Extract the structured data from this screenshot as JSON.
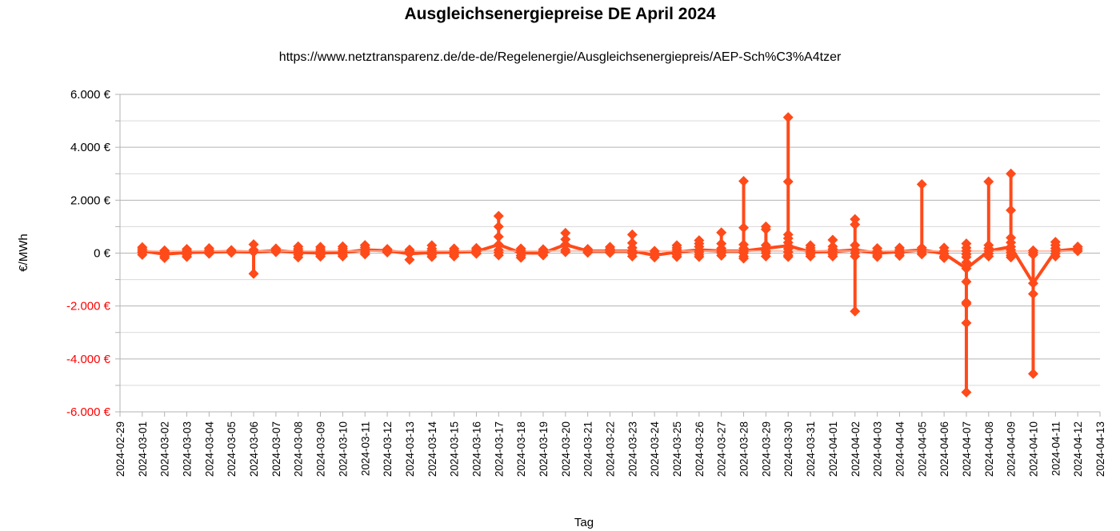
{
  "chart_data": {
    "type": "line",
    "title": "Ausgleichsenergiepreise DE April 2024",
    "subtitle": "https://www.netztransparenz.de/de-de/Regelenergie/Ausgleichsenergiepreis/AEP-Sch%C3%A4tzer",
    "xlabel": "Tag",
    "ylabel": "€/MWh",
    "ylim": [
      -6000,
      6000
    ],
    "grid": true,
    "legend": "none",
    "colors": {
      "series": "#ff4a1a",
      "grid": "#b3b3b3",
      "negative_tick": "#ff0000",
      "positive_tick": "#000000"
    },
    "y_ticks": [
      {
        "value": 6000,
        "label": "6.000 €"
      },
      {
        "value": 4000,
        "label": "4.000 €"
      },
      {
        "value": 2000,
        "label": "2.000 €"
      },
      {
        "value": 0,
        "label": "0 €"
      },
      {
        "value": -2000,
        "label": "-2.000 €"
      },
      {
        "value": -4000,
        "label": "-4.000 €"
      },
      {
        "value": -6000,
        "label": "-6.000 €"
      }
    ],
    "x_ticks": [
      "2024-02-29",
      "2024-03-01",
      "2024-03-02",
      "2024-03-03",
      "2024-03-04",
      "2024-03-05",
      "2024-03-06",
      "2024-03-07",
      "2024-03-08",
      "2024-03-09",
      "2024-03-10",
      "2024-03-11",
      "2024-03-12",
      "2024-03-13",
      "2024-03-14",
      "2024-03-15",
      "2024-03-16",
      "2024-03-17",
      "2024-03-18",
      "2024-03-19",
      "2024-03-20",
      "2024-03-21",
      "2024-03-22",
      "2024-03-23",
      "2024-03-24",
      "2024-03-25",
      "2024-03-26",
      "2024-03-27",
      "2024-03-28",
      "2024-03-29",
      "2024-03-30",
      "2024-03-31",
      "2024-04-01",
      "2024-04-02",
      "2024-04-03",
      "2024-04-04",
      "2024-04-05",
      "2024-04-06",
      "2024-04-07",
      "2024-04-08",
      "2024-04-09",
      "2024-04-10",
      "2024-04-11",
      "2024-04-12",
      "2024-04-13"
    ],
    "x": [
      "2024-03-01",
      "2024-03-02",
      "2024-03-03",
      "2024-03-04",
      "2024-03-05",
      "2024-03-06",
      "2024-03-07",
      "2024-03-08",
      "2024-03-09",
      "2024-03-10",
      "2024-03-11",
      "2024-03-12",
      "2024-03-13",
      "2024-03-14",
      "2024-03-15",
      "2024-03-16",
      "2024-03-17",
      "2024-03-18",
      "2024-03-19",
      "2024-03-20",
      "2024-03-21",
      "2024-03-22",
      "2024-03-23",
      "2024-03-24",
      "2024-03-25",
      "2024-03-26",
      "2024-03-27",
      "2024-03-28",
      "2024-03-29",
      "2024-03-30",
      "2024-03-31",
      "2024-04-01",
      "2024-04-02",
      "2024-04-03",
      "2024-04-04",
      "2024-04-05",
      "2024-04-06",
      "2024-04-07",
      "2024-04-08",
      "2024-04-09",
      "2024-04-10",
      "2024-04-11",
      "2024-04-12"
    ],
    "series": [
      {
        "values": [
          [
            220,
            150,
            80,
            20,
            -60
          ],
          [
            100,
            40,
            -40,
            -120,
            -180
          ],
          [
            150,
            80,
            20,
            -60,
            -140
          ],
          [
            180,
            110,
            40,
            -20
          ],
          [
            110,
            60,
            20
          ],
          [
            330,
            120,
            40,
            -780
          ],
          [
            170,
            100,
            40
          ],
          [
            250,
            160,
            90,
            20,
            -60,
            -160
          ],
          [
            230,
            150,
            80,
            10,
            -60,
            -130
          ],
          [
            250,
            170,
            90,
            20,
            -60,
            -120
          ],
          [
            300,
            210,
            120,
            40,
            -40
          ],
          [
            150,
            90,
            30
          ],
          [
            130,
            60,
            -20,
            -250
          ],
          [
            290,
            170,
            90,
            20,
            -60,
            -140
          ],
          [
            170,
            100,
            30,
            -60,
            -120
          ],
          [
            190,
            130,
            60,
            -20
          ],
          [
            1400,
            1000,
            620,
            320,
            120,
            20,
            -80
          ],
          [
            170,
            90,
            10,
            -90,
            -170
          ],
          [
            140,
            70,
            0,
            -80
          ],
          [
            760,
            520,
            320,
            120,
            40
          ],
          [
            150,
            80,
            20
          ],
          [
            230,
            150,
            80,
            10
          ],
          [
            700,
            380,
            200,
            80,
            -20,
            -120
          ],
          [
            80,
            0,
            -80,
            -160
          ],
          [
            290,
            200,
            120,
            40,
            -60,
            -140
          ],
          [
            480,
            360,
            240,
            120,
            40,
            -60,
            -140
          ],
          [
            780,
            360,
            180,
            80,
            0,
            -90
          ],
          [
            2720,
            960,
            320,
            180,
            80,
            0,
            -120,
            -200
          ],
          [
            1000,
            900,
            300,
            180,
            80,
            0,
            -120
          ],
          [
            5130,
            2700,
            700,
            560,
            400,
            280,
            160,
            40,
            -80,
            -140
          ],
          [
            290,
            200,
            120,
            40,
            -40,
            -120
          ],
          [
            500,
            250,
            150,
            60,
            -40,
            -120
          ],
          [
            1280,
            1080,
            300,
            120,
            0,
            -120,
            -2200
          ],
          [
            180,
            80,
            0,
            -80,
            -140
          ],
          [
            200,
            120,
            50,
            -20,
            -100
          ],
          [
            2600,
            200,
            120,
            40,
            -40
          ],
          [
            200,
            80,
            -20,
            -120,
            -180
          ],
          [
            360,
            200,
            80,
            -40,
            -150,
            -350,
            -580,
            -1080,
            -1860,
            -1920,
            -2640,
            -5260
          ],
          [
            2700,
            300,
            180,
            80,
            -20,
            -120
          ],
          [
            3000,
            1620,
            580,
            400,
            240,
            120,
            20,
            -80,
            -160
          ],
          [
            100,
            20,
            -60,
            -1140,
            -1540,
            -4560
          ],
          [
            420,
            300,
            180,
            80,
            -20,
            -120
          ],
          [
            240,
            160,
            80
          ]
        ]
      }
    ]
  }
}
